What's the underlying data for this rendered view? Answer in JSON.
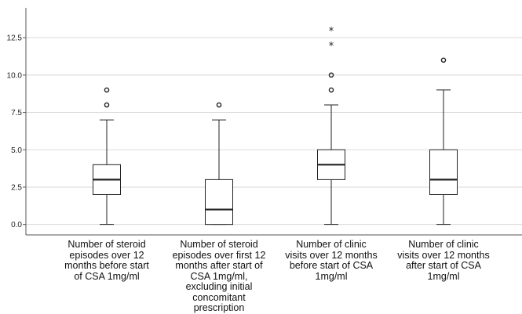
{
  "chart_data": {
    "type": "boxplot",
    "title": "",
    "xlabel": "",
    "ylabel": "",
    "ylim": [
      -0.7,
      14.5
    ],
    "yticks": [
      "0.0",
      "2.5",
      "5.0",
      "7.5",
      "10.0",
      "12.5"
    ],
    "grid": "horizontal",
    "categories": [
      "Number of steroid episodes over 12 months before start of CSA 1mg/ml",
      "Number of steroid episodes over first 12 months after start of CSA 1mg/ml, excluding initial concomitant prescription",
      "Number of clinic visits over 12 months before start of CSA 1mg/ml",
      "Number of clinic visits over 12 months after start of CSA 1mg/ml"
    ],
    "boxes": [
      {
        "whisker_low": 0,
        "q1": 2,
        "median": 3,
        "q3": 4,
        "whisker_high": 7,
        "outliers": [
          8,
          9
        ],
        "extremes": []
      },
      {
        "whisker_low": 0,
        "q1": 0,
        "median": 1,
        "q3": 3,
        "whisker_high": 7,
        "outliers": [
          8
        ],
        "extremes": []
      },
      {
        "whisker_low": 0,
        "q1": 3,
        "median": 4,
        "q3": 5,
        "whisker_high": 8,
        "outliers": [
          9,
          10
        ],
        "extremes": [
          12,
          13
        ]
      },
      {
        "whisker_low": 0,
        "q1": 2,
        "median": 3,
        "q3": 5,
        "whisker_high": 9,
        "outliers": [
          11
        ],
        "extremes": []
      }
    ],
    "colors": {
      "box_fill": "#ffffff",
      "stroke": "#222222",
      "grid": "#d9d9d9",
      "axis": "#555555"
    }
  }
}
